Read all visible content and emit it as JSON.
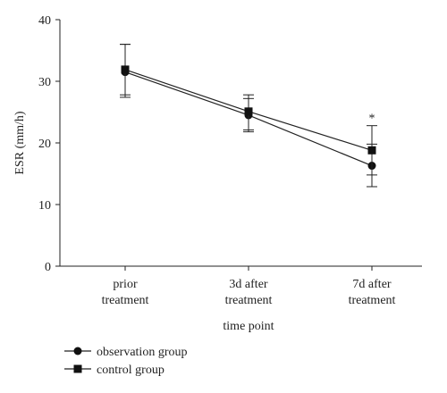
{
  "chart_data": {
    "type": "line",
    "title": "",
    "xlabel": "time point",
    "ylabel": "ESR (mm/h)",
    "ylim": [
      0,
      40
    ],
    "yticks": [
      0,
      10,
      20,
      30,
      40
    ],
    "categories": [
      [
        "prior",
        "treatment"
      ],
      [
        "3d after",
        "treatment"
      ],
      [
        "7d after",
        "treatment"
      ]
    ],
    "series": [
      {
        "name": "observation group",
        "marker": "circle",
        "values": [
          31.5,
          24.5,
          16.3
        ],
        "error_upper": [
          36.0,
          27.2,
          19.8
        ],
        "error_lower": [
          27.4,
          21.8,
          12.9
        ]
      },
      {
        "name": "control group",
        "marker": "square",
        "values": [
          31.9,
          25.1,
          18.8
        ],
        "error_upper": [
          36.0,
          27.8,
          22.8
        ],
        "error_lower": [
          27.8,
          22.1,
          14.8
        ]
      }
    ],
    "annotations": [
      {
        "category_index": 2,
        "text": "*"
      }
    ],
    "legend_position": "bottom-left",
    "grid": false,
    "colors": {
      "line": "#222222",
      "marker": "#111111"
    }
  }
}
